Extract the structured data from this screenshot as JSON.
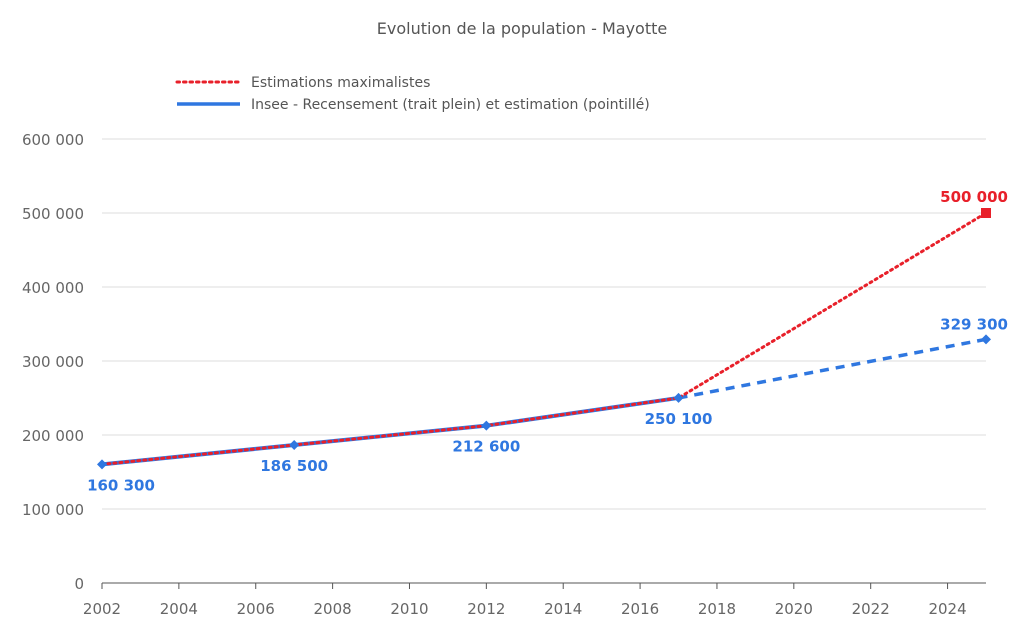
{
  "chart_data": {
    "type": "line",
    "title": "Evolution de la population - Mayotte",
    "xlabel": "",
    "ylabel": "",
    "xlim": [
      2002,
      2025
    ],
    "ylim": [
      0,
      600000
    ],
    "x_ticks": [
      "2002",
      "2004",
      "2006",
      "2008",
      "2010",
      "2012",
      "2014",
      "2016",
      "2018",
      "2020",
      "2022",
      "2024"
    ],
    "y_ticks": [
      "0",
      "100 000",
      "200 000",
      "300 000",
      "400 000",
      "500 000",
      "600 000"
    ],
    "y_tick_values": [
      0,
      100000,
      200000,
      300000,
      400000,
      500000,
      600000
    ],
    "grid": "horizontal",
    "legend_position": "top-left",
    "series": [
      {
        "name": "Estimations maximalistes",
        "color": "#e8202a",
        "style": "dotted",
        "x": [
          2002,
          2007,
          2012,
          2017,
          2025
        ],
        "y": [
          160300,
          186500,
          212600,
          250100,
          500000
        ],
        "labels": [
          "",
          "",
          "",
          "",
          "500 000"
        ],
        "marker_last": "square"
      },
      {
        "name": "Insee - Recensement (trait plein) et estimation (pointillé)",
        "color": "#2f77e0",
        "style": "solid-then-dashed",
        "x": [
          2002,
          2007,
          2012,
          2017,
          2025
        ],
        "y": [
          160300,
          186500,
          212600,
          250100,
          329300
        ],
        "labels": [
          "160 300",
          "186 500",
          "212 600",
          "250 100",
          "329 300"
        ],
        "dashed_from": 2017,
        "marker": "diamond"
      }
    ]
  }
}
